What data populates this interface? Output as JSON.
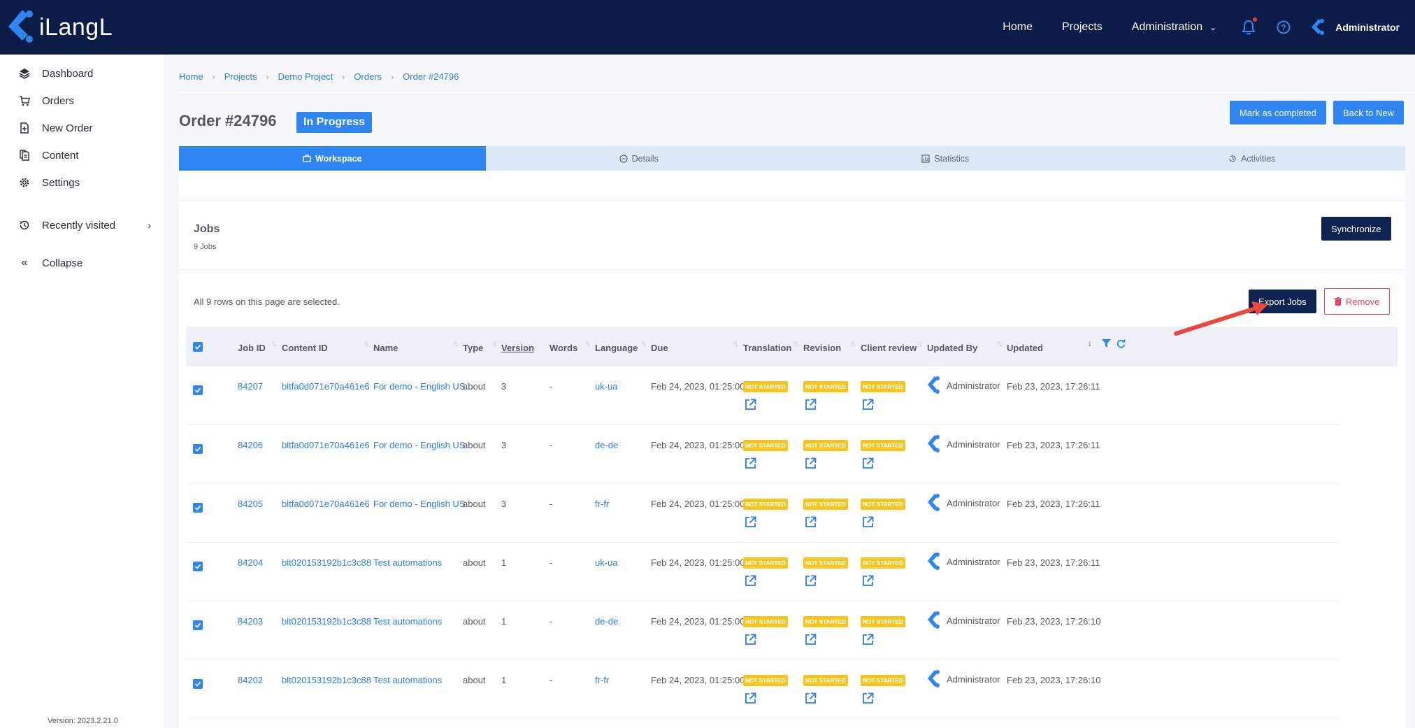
{
  "topbar": {
    "logo_text": "iLangL",
    "nav": [
      "Home",
      "Projects",
      "Administration"
    ],
    "user_name": "Administrator"
  },
  "sidebar": {
    "items": [
      {
        "label": "Dashboard",
        "icon": "layers-icon"
      },
      {
        "label": "Orders",
        "icon": "cart-icon"
      },
      {
        "label": "New Order",
        "icon": "new-file-icon"
      },
      {
        "label": "Content",
        "icon": "documents-icon"
      },
      {
        "label": "Settings",
        "icon": "gear-icon"
      },
      {
        "label": "Recently visited",
        "icon": "history-icon"
      },
      {
        "label": "Collapse",
        "icon": "double-chevron-left-icon"
      }
    ],
    "version": "Version: 2023.2.21.0"
  },
  "breadcrumb": [
    "Home",
    "Projects",
    "Demo Project",
    "Orders",
    "Order #24796"
  ],
  "order": {
    "title": "Order #24796",
    "status": "In Progress",
    "mark_completed": "Mark as completed",
    "back_to_new": "Back to New"
  },
  "tabs": [
    "Workspace",
    "Details",
    "Statistics",
    "Activities"
  ],
  "jobs": {
    "title": "Jobs",
    "count": "9 Jobs",
    "synchronize": "Synchronize",
    "selection_note": "All 9 rows on this page are selected.",
    "export": "Export Jobs",
    "remove": "Remove"
  },
  "table": {
    "columns": [
      "Job ID",
      "Content ID",
      "Name",
      "Type",
      "Version",
      "Words",
      "Language",
      "Due",
      "Translation",
      "Revision",
      "Client review",
      "Updated By",
      "Updated"
    ],
    "status_label": "NOT STARTED",
    "rows": [
      {
        "job_id": "84207",
        "content_id": "bltfa0d071e70a461e6",
        "name": "For demo - English US",
        "type": "about",
        "version": "3",
        "words": "-",
        "language": "uk-ua",
        "due": "Feb 24, 2023, 01:25:00",
        "updated_by": "Administrator",
        "updated": "Feb 23, 2023, 17:26:11"
      },
      {
        "job_id": "84206",
        "content_id": "bltfa0d071e70a461e6",
        "name": "For demo - English US",
        "type": "about",
        "version": "3",
        "words": "-",
        "language": "de-de",
        "due": "Feb 24, 2023, 01:25:00",
        "updated_by": "Administrator",
        "updated": "Feb 23, 2023, 17:26:11"
      },
      {
        "job_id": "84205",
        "content_id": "bltfa0d071e70a461e6",
        "name": "For demo - English US",
        "type": "about",
        "version": "3",
        "words": "-",
        "language": "fr-fr",
        "due": "Feb 24, 2023, 01:25:00",
        "updated_by": "Administrator",
        "updated": "Feb 23, 2023, 17:26:11"
      },
      {
        "job_id": "84204",
        "content_id": "blt020153192b1c3c88",
        "name": "Test automations",
        "type": "about",
        "version": "1",
        "words": "-",
        "language": "uk-ua",
        "due": "Feb 24, 2023, 01:25:00",
        "updated_by": "Administrator",
        "updated": "Feb 23, 2023, 17:26:11"
      },
      {
        "job_id": "84203",
        "content_id": "blt020153192b1c3c88",
        "name": "Test automations",
        "type": "about",
        "version": "1",
        "words": "-",
        "language": "de-de",
        "due": "Feb 24, 2023, 01:25:00",
        "updated_by": "Administrator",
        "updated": "Feb 23, 2023, 17:26:10"
      },
      {
        "job_id": "84202",
        "content_id": "blt020153192b1c3c88",
        "name": "Test automations",
        "type": "about",
        "version": "1",
        "words": "-",
        "language": "fr-fr",
        "due": "Feb 24, 2023, 01:25:00",
        "updated_by": "Administrator",
        "updated": "Feb 23, 2023, 17:26:10"
      }
    ]
  },
  "colors": {
    "navy": "#0b1d46",
    "primary": "#2f86f3",
    "warning": "#f7c51c",
    "danger": "#e04656",
    "annotation": "#e8483d"
  }
}
